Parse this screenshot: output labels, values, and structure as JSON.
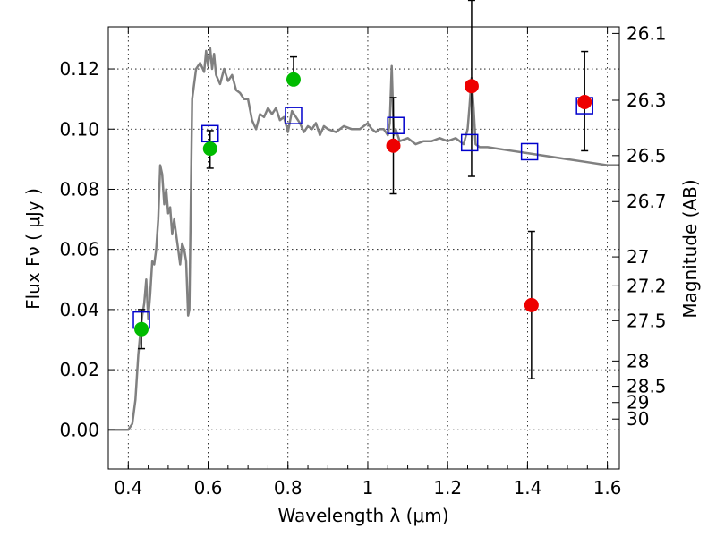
{
  "chart_data": {
    "type": "scatter",
    "xlabel": "Wavelength  λ (μm)",
    "ylabel": "Flux  Fν  ( μJy )",
    "y2label": "Magnitude (AB)",
    "xlim": [
      0.35,
      1.63
    ],
    "ylim": [
      -0.013,
      0.134
    ],
    "xticks": [
      0.4,
      0.6,
      0.8,
      1.0,
      1.2,
      1.4,
      1.6
    ],
    "xtick_labels": [
      "0.4",
      "0.6",
      "0.8",
      "1",
      "1.2",
      "1.4",
      "1.6"
    ],
    "yticks": [
      0.0,
      0.02,
      0.04,
      0.06,
      0.08,
      0.1,
      0.12
    ],
    "ytick_labels": [
      "0.00",
      "0.02",
      "0.04",
      "0.06",
      "0.08",
      "0.10",
      "0.12"
    ],
    "mag_ticks": [
      {
        "label": "26.1",
        "value": 0.1318
      },
      {
        "label": "26.3",
        "value": 0.1096
      },
      {
        "label": "26.5",
        "value": 0.0912
      },
      {
        "label": "26.7",
        "value": 0.0759
      },
      {
        "label": "27",
        "value": 0.0575
      },
      {
        "label": "27.2",
        "value": 0.0479
      },
      {
        "label": "27.5",
        "value": 0.0363
      },
      {
        "label": "28",
        "value": 0.0229
      },
      {
        "label": "28.5",
        "value": 0.0145
      },
      {
        "label": "29",
        "value": 0.0091
      },
      {
        "label": "30",
        "value": 0.0036
      }
    ],
    "grid": true,
    "colors": {
      "model": "#808080",
      "green": "#00bb00",
      "red": "#ee0000",
      "blue": "#0000cc",
      "errorbar": "#000000"
    },
    "series": [
      {
        "kind": "model",
        "x": [
          0.35,
          0.4,
          0.41,
          0.418,
          0.425,
          0.43,
          0.435,
          0.44,
          0.445,
          0.45,
          0.455,
          0.46,
          0.465,
          0.47,
          0.475,
          0.48,
          0.485,
          0.49,
          0.495,
          0.5,
          0.505,
          0.51,
          0.515,
          0.52,
          0.525,
          0.53,
          0.535,
          0.54,
          0.545,
          0.55,
          0.553,
          0.56,
          0.57,
          0.58,
          0.59,
          0.595,
          0.6,
          0.605,
          0.61,
          0.615,
          0.62,
          0.63,
          0.64,
          0.65,
          0.66,
          0.67,
          0.68,
          0.69,
          0.7,
          0.71,
          0.72,
          0.73,
          0.74,
          0.75,
          0.76,
          0.77,
          0.78,
          0.79,
          0.8,
          0.81,
          0.82,
          0.83,
          0.84,
          0.85,
          0.86,
          0.87,
          0.88,
          0.89,
          0.9,
          0.92,
          0.94,
          0.96,
          0.98,
          1.0,
          1.01,
          1.02,
          1.03,
          1.04,
          1.05,
          1.055,
          1.06,
          1.065,
          1.07,
          1.08,
          1.1,
          1.12,
          1.14,
          1.16,
          1.18,
          1.2,
          1.22,
          1.24,
          1.25,
          1.255,
          1.26,
          1.265,
          1.27,
          1.28,
          1.3,
          1.35,
          1.4,
          1.45,
          1.5,
          1.55,
          1.6,
          1.63
        ],
        "y": [
          0.0,
          0.0,
          0.002,
          0.01,
          0.025,
          0.032,
          0.038,
          0.042,
          0.05,
          0.037,
          0.045,
          0.056,
          0.055,
          0.06,
          0.07,
          0.088,
          0.085,
          0.075,
          0.08,
          0.072,
          0.074,
          0.065,
          0.07,
          0.065,
          0.06,
          0.055,
          0.062,
          0.06,
          0.056,
          0.038,
          0.04,
          0.11,
          0.12,
          0.122,
          0.119,
          0.126,
          0.121,
          0.127,
          0.12,
          0.125,
          0.118,
          0.115,
          0.12,
          0.116,
          0.118,
          0.113,
          0.112,
          0.11,
          0.11,
          0.103,
          0.1,
          0.105,
          0.104,
          0.107,
          0.105,
          0.107,
          0.103,
          0.104,
          0.099,
          0.106,
          0.104,
          0.102,
          0.099,
          0.101,
          0.1,
          0.102,
          0.098,
          0.101,
          0.1,
          0.099,
          0.101,
          0.1,
          0.1,
          0.102,
          0.1,
          0.099,
          0.1,
          0.1,
          0.098,
          0.102,
          0.121,
          0.098,
          0.1,
          0.096,
          0.097,
          0.095,
          0.096,
          0.096,
          0.097,
          0.096,
          0.097,
          0.095,
          0.1,
          0.108,
          0.117,
          0.107,
          0.095,
          0.094,
          0.094,
          0.093,
          0.092,
          0.091,
          0.09,
          0.089,
          0.088,
          0.088
        ]
      },
      {
        "kind": "points",
        "color": "green",
        "x": [
          0.433,
          0.605,
          0.814
        ],
        "y": [
          0.0335,
          0.0935,
          0.1165
        ],
        "err_low": [
          0.0065,
          0.0065,
          0.0
        ],
        "err_high": [
          0.0065,
          0.006,
          0.0075
        ]
      },
      {
        "kind": "points",
        "color": "red",
        "x": [
          1.064,
          1.26,
          1.41,
          1.543
        ],
        "y": [
          0.0945,
          0.1143,
          0.0415,
          0.109
        ],
        "err_low": [
          0.016,
          0.03,
          0.0245,
          0.0162
        ],
        "err_high": [
          0.016,
          0.0285,
          0.0245,
          0.0168
        ]
      },
      {
        "kind": "squares",
        "color": "blue",
        "x": [
          0.433,
          0.605,
          0.814,
          1.07,
          1.255,
          1.405,
          1.543
        ],
        "y": [
          0.0365,
          0.0985,
          0.1045,
          0.1012,
          0.0955,
          0.0925,
          0.1078
        ]
      }
    ]
  }
}
